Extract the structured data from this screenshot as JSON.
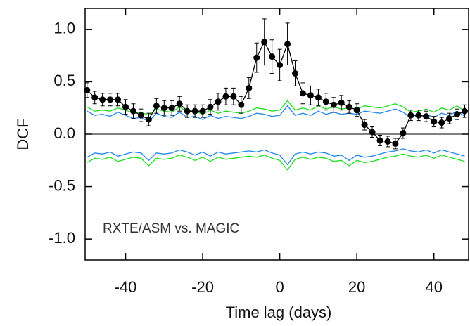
{
  "chart_data": {
    "type": "line",
    "x_label": "Time lag (days)",
    "y_label": "DCF",
    "annotation": "RXTE/ASM vs. MAGIC",
    "x": [
      -50,
      -48,
      -46,
      -44,
      -42,
      -40,
      -38,
      -36,
      -34,
      -32,
      -30,
      -28,
      -26,
      -24,
      -22,
      -20,
      -18,
      -16,
      -14,
      -12,
      -10,
      -8,
      -6,
      -4,
      -2,
      0,
      2,
      4,
      6,
      8,
      10,
      12,
      14,
      16,
      18,
      20,
      22,
      24,
      26,
      28,
      30,
      32,
      34,
      36,
      38,
      40,
      42,
      44,
      46,
      48
    ],
    "series": [
      {
        "color": "#22dd22",
        "values": [
          0.26,
          0.22,
          0.23,
          0.22,
          0.25,
          0.23,
          0.2,
          0.21,
          0.18,
          0.24,
          0.22,
          0.21,
          0.26,
          0.21,
          0.22,
          0.19,
          0.23,
          0.2,
          0.22,
          0.21,
          0.2,
          0.22,
          0.25,
          0.24,
          0.22,
          0.23,
          0.32,
          0.23,
          0.25,
          0.23,
          0.27,
          0.24,
          0.26,
          0.24,
          0.25,
          0.24,
          0.27,
          0.26,
          0.25,
          0.27,
          0.29,
          0.26,
          0.21,
          0.22,
          0.24,
          0.21,
          0.25,
          0.23,
          0.27,
          0.22
        ]
      },
      {
        "color": "#2288ee",
        "values": [
          0.22,
          0.18,
          0.19,
          0.17,
          0.21,
          0.18,
          0.15,
          0.16,
          0.12,
          0.2,
          0.17,
          0.16,
          0.21,
          0.16,
          0.17,
          0.14,
          0.18,
          0.15,
          0.17,
          0.16,
          0.15,
          0.17,
          0.2,
          0.19,
          0.17,
          0.18,
          0.27,
          0.18,
          0.2,
          0.18,
          0.22,
          0.19,
          0.21,
          0.19,
          0.2,
          0.19,
          0.22,
          0.21,
          0.2,
          0.22,
          0.24,
          0.21,
          0.16,
          0.17,
          0.19,
          0.16,
          0.2,
          0.18,
          0.22,
          0.17
        ]
      },
      {
        "color": "#22dd22",
        "values": [
          -0.27,
          -0.23,
          -0.24,
          -0.22,
          -0.26,
          -0.24,
          -0.22,
          -0.23,
          -0.3,
          -0.23,
          -0.24,
          -0.23,
          -0.2,
          -0.22,
          -0.25,
          -0.22,
          -0.26,
          -0.22,
          -0.24,
          -0.23,
          -0.22,
          -0.21,
          -0.22,
          -0.2,
          -0.23,
          -0.25,
          -0.34,
          -0.24,
          -0.22,
          -0.24,
          -0.22,
          -0.23,
          -0.26,
          -0.25,
          -0.3,
          -0.25,
          -0.27,
          -0.26,
          -0.24,
          -0.22,
          -0.21,
          -0.19,
          -0.21,
          -0.22,
          -0.2,
          -0.23,
          -0.2,
          -0.22,
          -0.24,
          -0.26
        ]
      },
      {
        "color": "#2288ee",
        "values": [
          -0.22,
          -0.18,
          -0.19,
          -0.17,
          -0.21,
          -0.19,
          -0.17,
          -0.18,
          -0.25,
          -0.18,
          -0.19,
          -0.18,
          -0.15,
          -0.17,
          -0.2,
          -0.17,
          -0.21,
          -0.17,
          -0.19,
          -0.18,
          -0.17,
          -0.16,
          -0.17,
          -0.15,
          -0.18,
          -0.2,
          -0.29,
          -0.19,
          -0.17,
          -0.19,
          -0.17,
          -0.18,
          -0.21,
          -0.2,
          -0.25,
          -0.2,
          -0.22,
          -0.21,
          -0.19,
          -0.17,
          -0.16,
          -0.14,
          -0.16,
          -0.17,
          -0.15,
          -0.18,
          -0.15,
          -0.17,
          -0.19,
          -0.21
        ]
      },
      {
        "color": "#000000",
        "marker": true,
        "values": [
          0.42,
          0.35,
          0.33,
          0.33,
          0.33,
          0.26,
          0.22,
          0.18,
          0.14,
          0.27,
          0.25,
          0.25,
          0.29,
          0.22,
          0.22,
          0.22,
          0.26,
          0.31,
          0.36,
          0.36,
          0.28,
          0.44,
          0.73,
          0.88,
          0.74,
          0.66,
          0.86,
          0.58,
          0.39,
          0.37,
          0.35,
          0.31,
          0.28,
          0.3,
          0.26,
          0.23,
          0.09,
          0.02,
          -0.06,
          -0.07,
          -0.09,
          0.01,
          0.18,
          0.18,
          0.17,
          0.12,
          0.11,
          0.15,
          0.19,
          0.22
        ],
        "errors": [
          0.07,
          0.06,
          0.06,
          0.06,
          0.06,
          0.07,
          0.07,
          0.06,
          0.06,
          0.07,
          0.07,
          0.07,
          0.07,
          0.06,
          0.06,
          0.06,
          0.07,
          0.08,
          0.08,
          0.08,
          0.08,
          0.1,
          0.14,
          0.22,
          0.16,
          0.15,
          0.2,
          0.12,
          0.1,
          0.09,
          0.08,
          0.08,
          0.07,
          0.07,
          0.06,
          0.06,
          0.05,
          0.05,
          0.05,
          0.05,
          0.05,
          0.05,
          0.05,
          0.05,
          0.05,
          0.05,
          0.05,
          0.05,
          0.05,
          0.06
        ]
      }
    ],
    "hline": 0,
    "xlim": [
      -50.5,
      49
    ],
    "ylim": [
      -1.2,
      1.2
    ],
    "xticks": [
      -40,
      -20,
      0,
      20,
      40
    ],
    "yticks": [
      {
        "value": -1,
        "label": "-1.0"
      },
      {
        "value": -0.5,
        "label": "-0.5"
      },
      {
        "value": 0,
        "label": "0.0"
      },
      {
        "value": 0.5,
        "label": "0.5"
      },
      {
        "value": 1,
        "label": "1.0"
      }
    ]
  }
}
